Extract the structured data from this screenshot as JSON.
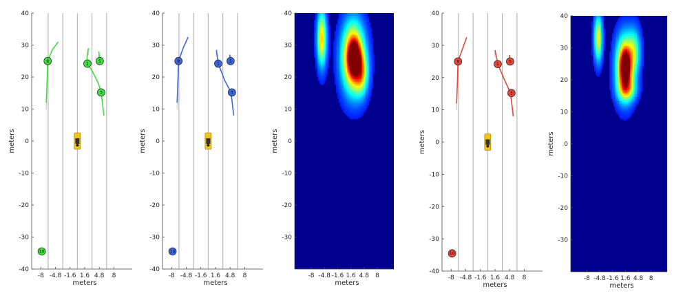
{
  "colors": {
    "green_series": "#3fdc3f",
    "blue_series": "#3b66d8",
    "red_series": "#e0463a",
    "lane_line": "#b8b8b8",
    "ego_car": "#f0c419",
    "heatmap_bg": "#00008f"
  },
  "chart_data": [
    {
      "type": "scatter",
      "xlabel": "meters",
      "ylabel": "meters",
      "xticks": [
        "-8",
        "-4.8",
        "-1.6",
        "1.6",
        "4.8",
        "8"
      ],
      "yticks": [
        "40",
        "30",
        "20",
        "10",
        "0",
        "-10",
        "-20",
        "-30",
        "-40"
      ],
      "xlim": [
        -10,
        12
      ],
      "ylim": [
        -40,
        40
      ],
      "lane_lines_x": [
        -6.4,
        -3.2,
        0,
        3.2,
        6.4
      ],
      "color": "#3fdc3f",
      "agents": [
        {
          "id": "9",
          "x": -6.5,
          "y": 25,
          "path": [
            [
              -6.8,
              12
            ],
            [
              -6.6,
              20
            ],
            [
              -6.5,
              25
            ],
            [
              -5.5,
              28.5
            ],
            [
              -4.2,
              31
            ]
          ]
        },
        {
          "id": "1",
          "x": 2.2,
          "y": 24.2,
          "path": [
            [
              2.4,
              29
            ],
            [
              2.1,
              26
            ],
            [
              2.2,
              24.2
            ],
            [
              3.2,
              22
            ],
            [
              4.6,
              18
            ],
            [
              5.2,
              15.2
            ],
            [
              5.8,
              8
            ]
          ]
        },
        {
          "id": "5",
          "x": 4.9,
          "y": 25,
          "path": [
            [
              4.7,
              28
            ],
            [
              4.9,
              25
            ]
          ]
        },
        {
          "id": "3",
          "x": 5.2,
          "y": 15.2,
          "path": []
        },
        {
          "id": "10",
          "x": -7.8,
          "y": -34.5,
          "path": []
        }
      ],
      "ego": {
        "x": 0,
        "y": 0
      }
    },
    {
      "type": "scatter",
      "xlabel": "meters",
      "ylabel": "meters",
      "xticks": [
        "-8",
        "-4.8",
        "-1.6",
        "1.6",
        "4.8",
        "8"
      ],
      "yticks": [
        "40",
        "30",
        "20",
        "10",
        "0",
        "-10",
        "-20",
        "-30",
        "-40"
      ],
      "xlim": [
        -10,
        12
      ],
      "ylim": [
        -40,
        40
      ],
      "lane_lines_x": [
        -6.4,
        -3.2,
        0,
        3.2,
        6.4
      ],
      "color": "#3b66d8",
      "agents": [
        {
          "id": "9",
          "x": -6.5,
          "y": 25,
          "path": [
            [
              -6.8,
              12
            ],
            [
              -6.6,
              20
            ],
            [
              -6.5,
              25
            ],
            [
              -5.5,
              29
            ],
            [
              -4.4,
              32.5
            ]
          ]
        },
        {
          "id": "1",
          "x": 2.2,
          "y": 24.2,
          "path": [
            [
              1.8,
              28.5
            ],
            [
              2.2,
              24.2
            ],
            [
              3.6,
              19
            ],
            [
              5.0,
              15.2
            ],
            [
              5.6,
              8
            ]
          ]
        },
        {
          "id": "5",
          "x": 4.9,
          "y": 25,
          "path": [
            [
              4.7,
              27
            ],
            [
              4.9,
              25
            ]
          ]
        },
        {
          "id": "3",
          "x": 5.2,
          "y": 15.2,
          "path": []
        },
        {
          "id": "10",
          "x": -7.8,
          "y": -34.5,
          "path": []
        }
      ],
      "ego": {
        "x": 0,
        "y": 0
      }
    },
    {
      "type": "heatmap",
      "xlabel": "meters",
      "ylabel": "meters",
      "xticks": [
        "-8",
        "-4.8",
        "-1.6",
        "1.6",
        "4.8",
        "8"
      ],
      "yticks": [
        "40",
        "30",
        "20",
        "10",
        "0",
        "-10",
        "-20",
        "-30"
      ],
      "xlim": [
        -12,
        12
      ],
      "ylim": [
        -40,
        40
      ],
      "blobs": [
        {
          "x": -5.4,
          "y": 32,
          "sx": 0.8,
          "sy": 6,
          "amp": 0.55
        },
        {
          "x": 2.2,
          "y": 26,
          "sx": 1.9,
          "sy": 7.5,
          "amp": 0.8
        },
        {
          "x": 2.4,
          "y": 26,
          "sx": 0.9,
          "sy": 3.5,
          "amp": 0.55
        },
        {
          "x": 4.2,
          "y": 21,
          "sx": 1.1,
          "sy": 4.5,
          "amp": 0.35
        }
      ]
    },
    {
      "type": "scatter",
      "xlabel": "meters",
      "ylabel": "meters",
      "xticks": [
        "-8",
        "-4.8",
        "-1.6",
        "1.6",
        "4.8",
        "8"
      ],
      "yticks": [
        "40",
        "30",
        "20",
        "10",
        "0",
        "-10",
        "-20",
        "-30",
        "-40"
      ],
      "xlim": [
        -10,
        12
      ],
      "ylim": [
        -40,
        40
      ],
      "lane_lines_x": [
        -6.4,
        -3.2,
        0,
        3.2,
        6.4
      ],
      "color": "#e0463a",
      "agents": [
        {
          "id": "9",
          "x": -6.5,
          "y": 25,
          "path": [
            [
              -6.8,
              12
            ],
            [
              -6.6,
              20
            ],
            [
              -6.5,
              25
            ],
            [
              -5.5,
              29
            ],
            [
              -4.6,
              32.5
            ]
          ]
        },
        {
          "id": "1",
          "x": 2.2,
          "y": 24.2,
          "path": [
            [
              1.6,
              28.5
            ],
            [
              2.2,
              24.2
            ],
            [
              3.6,
              19.5
            ],
            [
              5.0,
              15.2
            ],
            [
              5.6,
              8
            ]
          ]
        },
        {
          "id": "5",
          "x": 4.9,
          "y": 25,
          "path": [
            [
              4.7,
              27
            ],
            [
              4.9,
              25
            ]
          ]
        },
        {
          "id": "3",
          "x": 5.2,
          "y": 15.2,
          "path": []
        },
        {
          "id": "10",
          "x": -7.8,
          "y": -34.5,
          "path": []
        }
      ],
      "ego": {
        "x": 0,
        "y": 0
      }
    },
    {
      "type": "heatmap",
      "xlabel": "meters",
      "ylabel": "meters",
      "xticks": [
        "-8",
        "-4.8",
        "-1.6",
        "1.6",
        "4.8",
        "8"
      ],
      "yticks": [
        "40",
        "30",
        "20",
        "10",
        "0",
        "-10",
        "-20",
        "-30"
      ],
      "xlim": [
        -12,
        12
      ],
      "ylim": [
        -40,
        40
      ],
      "blobs": [
        {
          "x": -5.2,
          "y": 33,
          "sx": 0.7,
          "sy": 5,
          "amp": 0.5
        },
        {
          "x": 1.4,
          "y": 24,
          "sx": 1.5,
          "sy": 6.5,
          "amp": 0.75
        },
        {
          "x": 1.6,
          "y": 24,
          "sx": 0.8,
          "sy": 3.5,
          "amp": 0.5
        },
        {
          "x": 2.0,
          "y": 17,
          "sx": 1.6,
          "sy": 2.5,
          "amp": 0.3
        },
        {
          "x": 3.8,
          "y": 29,
          "sx": 1.1,
          "sy": 5,
          "amp": 0.3
        }
      ]
    }
  ]
}
